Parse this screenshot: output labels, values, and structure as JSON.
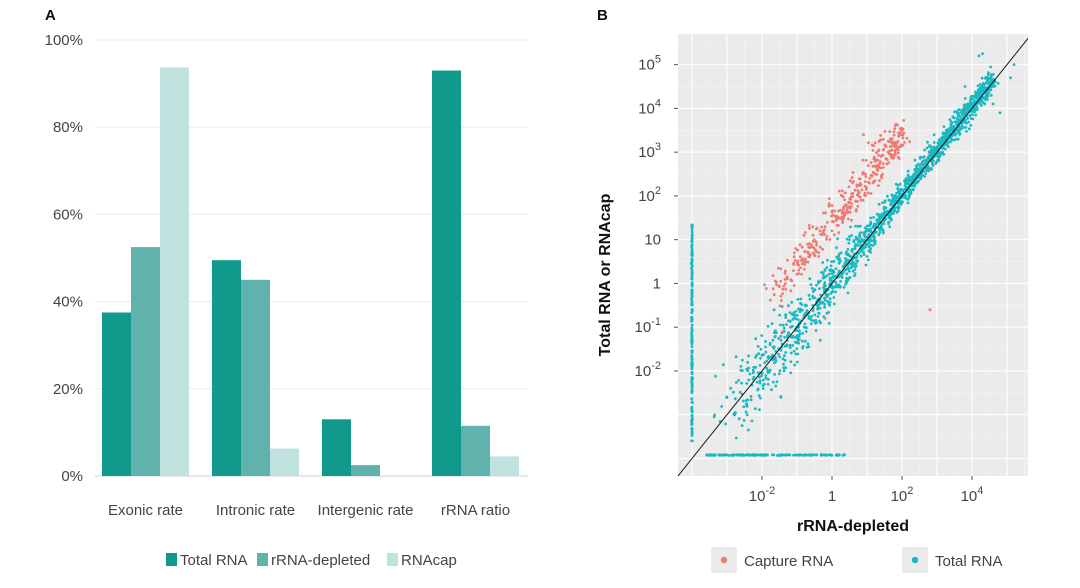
{
  "chart_data": [
    {
      "panel": "A",
      "type": "bar",
      "categories": [
        "Exonic rate",
        "Intronic rate",
        "Intergenic rate",
        "rRNA ratio"
      ],
      "series": [
        {
          "name": "Total RNA",
          "color": "#0f9a8b",
          "values": [
            37.5,
            49.5,
            13.0,
            93.0
          ]
        },
        {
          "name": "rRNA-depleted",
          "color": "#5fb3ac",
          "values": [
            52.5,
            45.0,
            2.5,
            11.5
          ]
        },
        {
          "name": "RNAcap",
          "color": "#bfe2df",
          "values": [
            93.7,
            6.3,
            0,
            4.5
          ]
        }
      ],
      "ylim": [
        0,
        100
      ],
      "yticks": [
        0,
        20,
        40,
        60,
        80,
        100
      ],
      "ytick_labels": [
        "0%",
        "20%",
        "40%",
        "60%",
        "80%",
        "100%"
      ],
      "xlabel": "",
      "ylabel": "",
      "legend_position": "bottom"
    },
    {
      "panel": "B",
      "type": "scatter",
      "xlabel": "rRNA-depleted",
      "ylabel": "Total RNA or RNAcap",
      "scale": "log10",
      "xlim": [
        -4.4,
        5.6
      ],
      "ylim": [
        -4.4,
        5.7
      ],
      "xticks": [
        -2,
        0,
        2,
        4
      ],
      "xtick_labels": [
        {
          "base": "10",
          "exp": "-2"
        },
        {
          "base": "1",
          "exp": ""
        },
        {
          "base": "10",
          "exp": "2"
        },
        {
          "base": "10",
          "exp": "4"
        }
      ],
      "yticks": [
        -2,
        -1,
        0,
        1,
        2,
        3,
        4,
        5
      ],
      "ytick_labels": [
        {
          "base": "10",
          "exp": "-2"
        },
        {
          "base": "10",
          "exp": "-1"
        },
        {
          "base": "1",
          "exp": ""
        },
        {
          "base": "10",
          "exp": ""
        },
        {
          "base": "10",
          "exp": "2"
        },
        {
          "base": "10",
          "exp": "3"
        },
        {
          "base": "10",
          "exp": "4"
        },
        {
          "base": "10",
          "exp": "5"
        }
      ],
      "reference_line": "y = x",
      "series": [
        {
          "name": "Capture RNA",
          "color": "#ee7a73"
        },
        {
          "name": "Total RNA",
          "color": "#19b9c2"
        }
      ],
      "legend_position": "bottom"
    }
  ]
}
